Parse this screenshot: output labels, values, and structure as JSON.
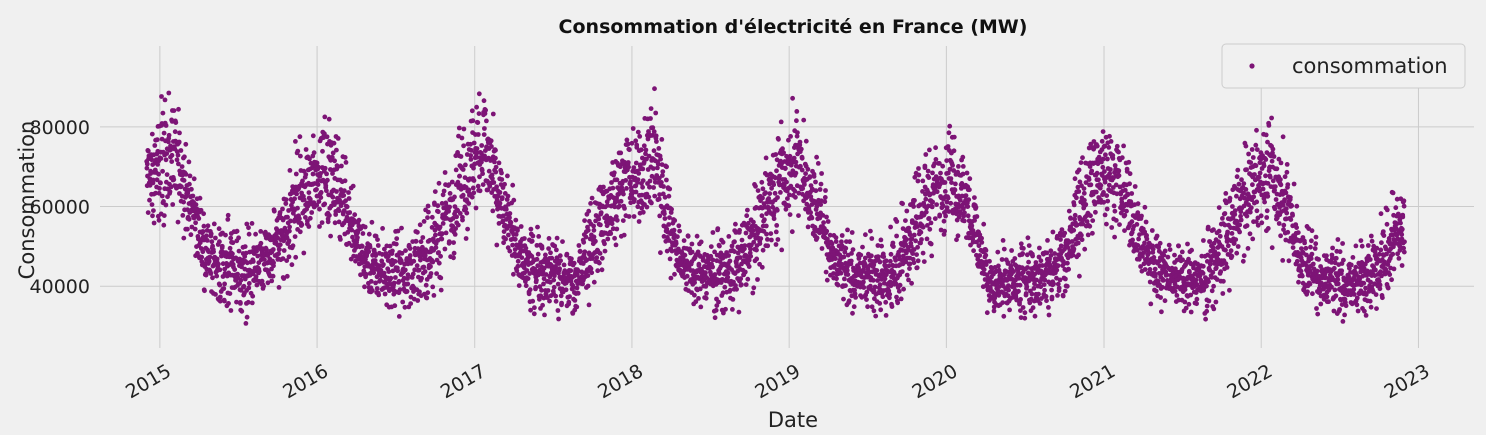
{
  "chart_data": {
    "type": "scatter",
    "title": "Consommation d'électricité en France (MW)",
    "xlabel": "Date",
    "ylabel": "Consommation",
    "x_tick_labels": [
      "2015",
      "2016",
      "2017",
      "2018",
      "2019",
      "2020",
      "2021",
      "2022",
      "2023"
    ],
    "y_ticks": [
      40000,
      60000,
      80000
    ],
    "y_tick_labels": [
      "40000",
      "60000",
      "80000"
    ],
    "xlim": [
      "2014-08-15",
      "2023-05-10"
    ],
    "ylim": [
      24500,
      100300
    ],
    "grid": true,
    "legend_position": "top-right",
    "series": [
      {
        "name": "consommation",
        "color": "#7d1476",
        "x_start": "2014-12-01",
        "x_end": "2022-11-30",
        "monthly_dates": [
          "2014-12",
          "2015-01",
          "2015-02",
          "2015-03",
          "2015-04",
          "2015-05",
          "2015-06",
          "2015-07",
          "2015-08",
          "2015-09",
          "2015-10",
          "2015-11",
          "2015-12",
          "2016-01",
          "2016-02",
          "2016-03",
          "2016-04",
          "2016-05",
          "2016-06",
          "2016-07",
          "2016-08",
          "2016-09",
          "2016-10",
          "2016-11",
          "2016-12",
          "2017-01",
          "2017-02",
          "2017-03",
          "2017-04",
          "2017-05",
          "2017-06",
          "2017-07",
          "2017-08",
          "2017-09",
          "2017-10",
          "2017-11",
          "2017-12",
          "2018-01",
          "2018-02",
          "2018-03",
          "2018-04",
          "2018-05",
          "2018-06",
          "2018-07",
          "2018-08",
          "2018-09",
          "2018-10",
          "2018-11",
          "2018-12",
          "2019-01",
          "2019-02",
          "2019-03",
          "2019-04",
          "2019-05",
          "2019-06",
          "2019-07",
          "2019-08",
          "2019-09",
          "2019-10",
          "2019-11",
          "2019-12",
          "2020-01",
          "2020-02",
          "2020-03",
          "2020-04",
          "2020-05",
          "2020-06",
          "2020-07",
          "2020-08",
          "2020-09",
          "2020-10",
          "2020-11",
          "2020-12",
          "2021-01",
          "2021-02",
          "2021-03",
          "2021-04",
          "2021-05",
          "2021-06",
          "2021-07",
          "2021-08",
          "2021-09",
          "2021-10",
          "2021-11",
          "2021-12",
          "2022-01",
          "2022-02",
          "2022-03",
          "2022-04",
          "2022-05",
          "2022-06",
          "2022-07",
          "2022-08",
          "2022-09",
          "2022-10",
          "2022-11"
        ],
        "monthly_min": [
          52000,
          50000,
          54000,
          47000,
          38000,
          33500,
          31500,
          30500,
          31000,
          33500,
          37500,
          43000,
          48000,
          50000,
          50000,
          44000,
          37000,
          33000,
          32000,
          32500,
          32000,
          33500,
          38500,
          45000,
          52000,
          55000,
          50000,
          44000,
          36000,
          33000,
          32000,
          31000,
          31000,
          33500,
          38000,
          45000,
          52000,
          50000,
          52000,
          45000,
          36500,
          33000,
          32000,
          32000,
          32000,
          34000,
          39000,
          46000,
          49000,
          54000,
          50000,
          43000,
          36000,
          32500,
          31500,
          31000,
          31500,
          33500,
          38500,
          45000,
          50000,
          52000,
          49000,
          37000,
          30000,
          29500,
          31500,
          32000,
          31500,
          33000,
          37500,
          44000,
          51000,
          53000,
          48000,
          42000,
          35000,
          32000,
          31000,
          31000,
          31000,
          33000,
          38000,
          45000,
          50000,
          51000,
          47000,
          40000,
          33000,
          31000,
          30500,
          30000,
          30500,
          32000,
          35000,
          43000
        ],
        "monthly_max": [
          82000,
          91500,
          85000,
          74000,
          60000,
          57000,
          58500,
          57000,
          55500,
          60500,
          68000,
          80000,
          78000,
          88000,
          82000,
          72000,
          58000,
          56000,
          54000,
          56000,
          55000,
          62000,
          70000,
          80000,
          86000,
          94000,
          85000,
          72000,
          59000,
          57000,
          56000,
          54000,
          52000,
          59000,
          70000,
          78000,
          83000,
          82000,
          96000,
          78000,
          59000,
          55000,
          55000,
          55000,
          53000,
          60000,
          68000,
          78000,
          84000,
          88000,
          80000,
          70000,
          58000,
          55000,
          55000,
          55000,
          53000,
          60000,
          68000,
          76000,
          80000,
          83000,
          74000,
          62000,
          50000,
          52000,
          53000,
          54000,
          52000,
          58000,
          66000,
          76000,
          88000,
          85000,
          78000,
          70000,
          57000,
          54000,
          53000,
          53000,
          52000,
          58000,
          65000,
          76000,
          82000,
          87000,
          80000,
          68000,
          56000,
          53000,
          53000,
          52000,
          52000,
          55000,
          60000,
          67000
        ]
      }
    ]
  },
  "legend": {
    "label": "consommation",
    "marker_color": "#7d1476"
  }
}
